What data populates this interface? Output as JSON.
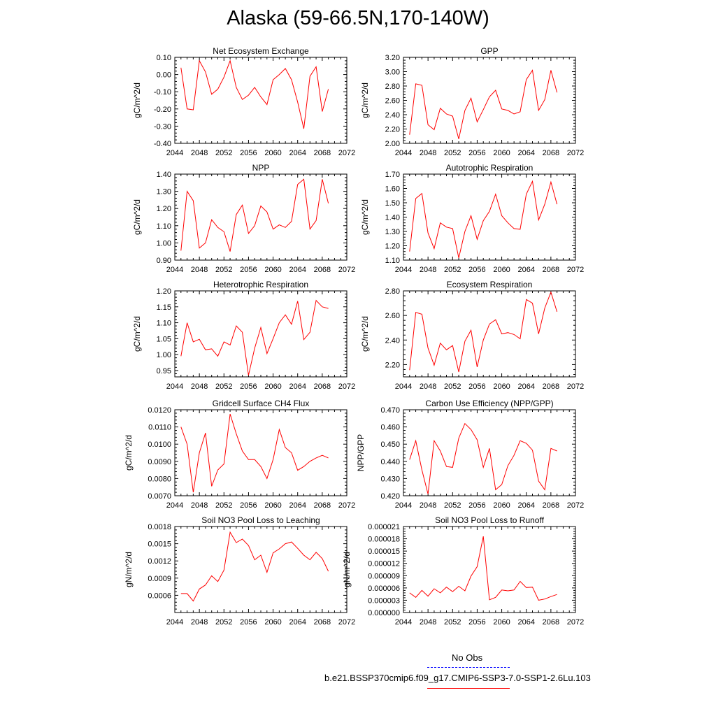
{
  "title": "Alaska (59-66.5N,170-140W)",
  "colors": {
    "model_series": "#ff0000",
    "obs_series": "#0000ff",
    "axis": "#000000"
  },
  "legend": [
    {
      "label": "No Obs",
      "style": "dashed",
      "color": "#0000ff"
    },
    {
      "label": "b.e21.BSSP370cmip6.f09_g17.CMIP6-SSP3-7.0-SSP1-2.6Lu.103",
      "style": "solid",
      "color": "#ff0000"
    }
  ],
  "chart_data": [
    {
      "type": "line",
      "title": "Net Ecosystem Exchange",
      "xlabel": "",
      "ylabel": "gC/m^2/d",
      "xlim": [
        2044,
        2072
      ],
      "xticks": [
        "2044",
        "2048",
        "2052",
        "2056",
        "2060",
        "2064",
        "2068",
        "2072"
      ],
      "ylim": [
        -0.4,
        0.1
      ],
      "yticks": [
        "-0.40",
        "-0.30",
        "-0.20",
        "-0.10",
        "0.00",
        "0.10"
      ],
      "x": [
        2045,
        2046,
        2047,
        2048,
        2049,
        2050,
        2051,
        2052,
        2053,
        2054,
        2055,
        2056,
        2057,
        2058,
        2059,
        2060,
        2061,
        2062,
        2063,
        2064,
        2065,
        2066,
        2067,
        2068,
        2069
      ],
      "series": [
        {
          "values": [
            0.04,
            -0.2,
            -0.205,
            0.08,
            0.015,
            -0.115,
            -0.085,
            -0.015,
            0.08,
            -0.075,
            -0.145,
            -0.12,
            -0.075,
            -0.13,
            -0.175,
            -0.03,
            0.0,
            0.035,
            -0.03,
            -0.16,
            -0.315,
            -0.01,
            0.045,
            -0.215,
            -0.085
          ]
        }
      ]
    },
    {
      "type": "line",
      "title": "GPP",
      "xlabel": "",
      "ylabel": "gC/m^2/d",
      "xlim": [
        2044,
        2072
      ],
      "xticks": [
        "2044",
        "2048",
        "2052",
        "2056",
        "2060",
        "2064",
        "2068",
        "2072"
      ],
      "ylim": [
        2.0,
        3.2
      ],
      "yticks": [
        "2.00",
        "2.20",
        "2.40",
        "2.60",
        "2.80",
        "3.00",
        "3.20"
      ],
      "x": [
        2045,
        2046,
        2047,
        2048,
        2049,
        2050,
        2051,
        2052,
        2053,
        2054,
        2055,
        2056,
        2057,
        2058,
        2059,
        2060,
        2061,
        2062,
        2063,
        2064,
        2065,
        2066,
        2067,
        2068,
        2069
      ],
      "series": [
        {
          "values": [
            2.12,
            2.83,
            2.81,
            2.26,
            2.19,
            2.49,
            2.41,
            2.38,
            2.06,
            2.46,
            2.63,
            2.3,
            2.47,
            2.65,
            2.74,
            2.48,
            2.46,
            2.41,
            2.44,
            2.89,
            3.02,
            2.46,
            2.61,
            3.02,
            2.71
          ]
        }
      ]
    },
    {
      "type": "line",
      "title": "NPP",
      "xlabel": "",
      "ylabel": "gC/m^2/d",
      "xlim": [
        2044,
        2072
      ],
      "xticks": [
        "2044",
        "2048",
        "2052",
        "2056",
        "2060",
        "2064",
        "2068",
        "2072"
      ],
      "ylim": [
        0.9,
        1.4
      ],
      "yticks": [
        "0.90",
        "1.00",
        "1.10",
        "1.20",
        "1.30",
        "1.40"
      ],
      "x": [
        2045,
        2046,
        2047,
        2048,
        2049,
        2050,
        2051,
        2052,
        2053,
        2054,
        2055,
        2056,
        2057,
        2058,
        2059,
        2060,
        2061,
        2062,
        2063,
        2064,
        2065,
        2066,
        2067,
        2068,
        2069
      ],
      "series": [
        {
          "values": [
            0.955,
            1.3,
            1.245,
            0.97,
            1.0,
            1.135,
            1.09,
            1.065,
            0.95,
            1.165,
            1.22,
            1.055,
            1.1,
            1.215,
            1.18,
            1.08,
            1.105,
            1.09,
            1.125,
            1.34,
            1.37,
            1.08,
            1.13,
            1.37,
            1.23
          ]
        }
      ]
    },
    {
      "type": "line",
      "title": "Autotrophic Respiration",
      "xlabel": "",
      "ylabel": "gC/m^2/d",
      "xlim": [
        2044,
        2072
      ],
      "xticks": [
        "2044",
        "2048",
        "2052",
        "2056",
        "2060",
        "2064",
        "2068",
        "2072"
      ],
      "ylim": [
        1.1,
        1.7
      ],
      "yticks": [
        "1.10",
        "1.20",
        "1.30",
        "1.40",
        "1.50",
        "1.60",
        "1.70"
      ],
      "x": [
        2045,
        2046,
        2047,
        2048,
        2049,
        2050,
        2051,
        2052,
        2053,
        2054,
        2055,
        2056,
        2057,
        2058,
        2059,
        2060,
        2061,
        2062,
        2063,
        2064,
        2065,
        2066,
        2067,
        2068,
        2069
      ],
      "series": [
        {
          "values": [
            1.16,
            1.53,
            1.565,
            1.29,
            1.18,
            1.36,
            1.33,
            1.32,
            1.115,
            1.3,
            1.41,
            1.245,
            1.375,
            1.44,
            1.56,
            1.41,
            1.36,
            1.32,
            1.315,
            1.56,
            1.65,
            1.38,
            1.49,
            1.645,
            1.49
          ]
        }
      ]
    },
    {
      "type": "line",
      "title": "Heterotrophic Respiration",
      "xlabel": "",
      "ylabel": "gC/m^2/d",
      "xlim": [
        2044,
        2072
      ],
      "xticks": [
        "2044",
        "2048",
        "2052",
        "2056",
        "2060",
        "2064",
        "2068",
        "2072"
      ],
      "ylim": [
        0.93,
        1.2
      ],
      "yticks": [
        "0.95",
        "1.00",
        "1.05",
        "1.10",
        "1.15",
        "1.20"
      ],
      "x": [
        2045,
        2046,
        2047,
        2048,
        2049,
        2050,
        2051,
        2052,
        2053,
        2054,
        2055,
        2056,
        2057,
        2058,
        2059,
        2060,
        2061,
        2062,
        2063,
        2064,
        2065,
        2066,
        2067,
        2068,
        2069
      ],
      "series": [
        {
          "values": [
            0.995,
            1.1,
            1.04,
            1.048,
            1.015,
            1.018,
            0.995,
            1.04,
            1.03,
            1.09,
            1.07,
            0.935,
            1.02,
            1.085,
            1.003,
            1.05,
            1.1,
            1.125,
            1.095,
            1.168,
            1.047,
            1.07,
            1.17,
            1.15,
            1.145
          ]
        }
      ]
    },
    {
      "type": "line",
      "title": "Ecosystem Respiration",
      "xlabel": "",
      "ylabel": "gC/m^2/d",
      "xlim": [
        2044,
        2072
      ],
      "xticks": [
        "2044",
        "2048",
        "2052",
        "2056",
        "2060",
        "2064",
        "2068",
        "2072"
      ],
      "ylim": [
        2.1,
        2.8
      ],
      "yticks": [
        "2.20",
        "2.40",
        "2.60",
        "2.80"
      ],
      "x": [
        2045,
        2046,
        2047,
        2048,
        2049,
        2050,
        2051,
        2052,
        2053,
        2054,
        2055,
        2056,
        2057,
        2058,
        2059,
        2060,
        2061,
        2062,
        2063,
        2064,
        2065,
        2066,
        2067,
        2068,
        2069
      ],
      "series": [
        {
          "values": [
            2.155,
            2.625,
            2.61,
            2.335,
            2.195,
            2.375,
            2.32,
            2.355,
            2.14,
            2.39,
            2.48,
            2.18,
            2.4,
            2.53,
            2.565,
            2.45,
            2.46,
            2.445,
            2.41,
            2.73,
            2.7,
            2.45,
            2.66,
            2.79,
            2.63
          ]
        }
      ]
    },
    {
      "type": "line",
      "title": "Gridcell Surface CH4 Flux",
      "xlabel": "",
      "ylabel": "gC/m^2/d",
      "xlim": [
        2044,
        2072
      ],
      "xticks": [
        "2044",
        "2048",
        "2052",
        "2056",
        "2060",
        "2064",
        "2068",
        "2072"
      ],
      "ylim": [
        0.007,
        0.012
      ],
      "yticks": [
        "0.0070",
        "0.0080",
        "0.0090",
        "0.0100",
        "0.0110",
        "0.0120"
      ],
      "x": [
        2045,
        2046,
        2047,
        2048,
        2049,
        2050,
        2051,
        2052,
        2053,
        2054,
        2055,
        2056,
        2057,
        2058,
        2059,
        2060,
        2061,
        2062,
        2063,
        2064,
        2065,
        2066,
        2067,
        2068,
        2069
      ],
      "series": [
        {
          "values": [
            0.011,
            0.01,
            0.0072,
            0.0095,
            0.01065,
            0.00755,
            0.0085,
            0.00885,
            0.01175,
            0.0106,
            0.0096,
            0.0091,
            0.0091,
            0.0087,
            0.008,
            0.0091,
            0.01085,
            0.0098,
            0.0095,
            0.00848,
            0.0087,
            0.009,
            0.0092,
            0.00935,
            0.0092
          ]
        }
      ]
    },
    {
      "type": "line",
      "title": "Carbon Use Efficiency (NPP/GPP)",
      "xlabel": "",
      "ylabel": "NPP/GPP",
      "xlim": [
        2044,
        2072
      ],
      "xticks": [
        "2044",
        "2048",
        "2052",
        "2056",
        "2060",
        "2064",
        "2068",
        "2072"
      ],
      "ylim": [
        0.42,
        0.47
      ],
      "yticks": [
        "0.420",
        "0.430",
        "0.440",
        "0.450",
        "0.460",
        "0.470"
      ],
      "x": [
        2045,
        2046,
        2047,
        2048,
        2049,
        2050,
        2051,
        2052,
        2053,
        2054,
        2055,
        2056,
        2057,
        2058,
        2059,
        2060,
        2061,
        2062,
        2063,
        2064,
        2065,
        2066,
        2067,
        2068,
        2069
      ],
      "series": [
        {
          "values": [
            0.441,
            0.452,
            0.435,
            0.421,
            0.452,
            0.446,
            0.437,
            0.4365,
            0.4535,
            0.462,
            0.4585,
            0.4525,
            0.4365,
            0.4475,
            0.4235,
            0.4265,
            0.4375,
            0.4435,
            0.452,
            0.4505,
            0.4465,
            0.4285,
            0.4235,
            0.4475,
            0.446
          ]
        }
      ]
    },
    {
      "type": "line",
      "title": "Soil NO3 Pool Loss to Leaching",
      "xlabel": "",
      "ylabel": "gN/m^2/d",
      "xlim": [
        2044,
        2072
      ],
      "xticks": [
        "2044",
        "2048",
        "2052",
        "2056",
        "2060",
        "2064",
        "2068",
        "2072"
      ],
      "ylim": [
        0.0003,
        0.0018
      ],
      "yticks": [
        "0.0006",
        "0.0009",
        "0.0012",
        "0.0015",
        "0.0018"
      ],
      "x": [
        2045,
        2046,
        2047,
        2048,
        2049,
        2050,
        2051,
        2052,
        2053,
        2054,
        2055,
        2056,
        2057,
        2058,
        2059,
        2060,
        2061,
        2062,
        2063,
        2064,
        2065,
        2066,
        2067,
        2068,
        2069
      ],
      "series": [
        {
          "values": [
            0.00063,
            0.00063,
            0.0005,
            0.00071,
            0.00078,
            0.00094,
            0.00084,
            0.00104,
            0.0017,
            0.00152,
            0.00158,
            0.00147,
            0.00122,
            0.0013,
            0.001,
            0.00134,
            0.00141,
            0.0015,
            0.00153,
            0.00142,
            0.0013,
            0.00122,
            0.00135,
            0.00124,
            0.00102
          ]
        }
      ]
    },
    {
      "type": "line",
      "title": "Soil NO3 Pool Loss to Runoff",
      "xlabel": "",
      "ylabel": "gN/m^2/d",
      "xlim": [
        2044,
        2072
      ],
      "xticks": [
        "2044",
        "2048",
        "2052",
        "2056",
        "2060",
        "2064",
        "2068",
        "2072"
      ],
      "ylim": [
        0.0,
        2.1e-05
      ],
      "yticks": [
        "0.000000",
        "0.000003",
        "0.000006",
        "0.000009",
        "0.000012",
        "0.000015",
        "0.000018",
        "0.000021"
      ],
      "x": [
        2045,
        2046,
        2047,
        2048,
        2049,
        2050,
        2051,
        2052,
        2053,
        2054,
        2055,
        2056,
        2057,
        2058,
        2059,
        2060,
        2061,
        2062,
        2063,
        2064,
        2065,
        2066,
        2067,
        2068,
        2069
      ],
      "series": [
        {
          "values": [
            4.8e-06,
            3.7e-06,
            5.4e-06,
            4e-06,
            5.8e-06,
            4.8e-06,
            6.2e-06,
            5.1e-06,
            6.4e-06,
            5.3e-06,
            8.9e-06,
            1.12e-05,
            1.86e-05,
            3.1e-06,
            3.7e-06,
            5.5e-06,
            5.3e-06,
            5.5e-06,
            7.6e-06,
            6.1e-06,
            6.2e-06,
            3e-06,
            3.3e-06,
            3.9e-06,
            4.4e-06
          ]
        }
      ]
    }
  ]
}
